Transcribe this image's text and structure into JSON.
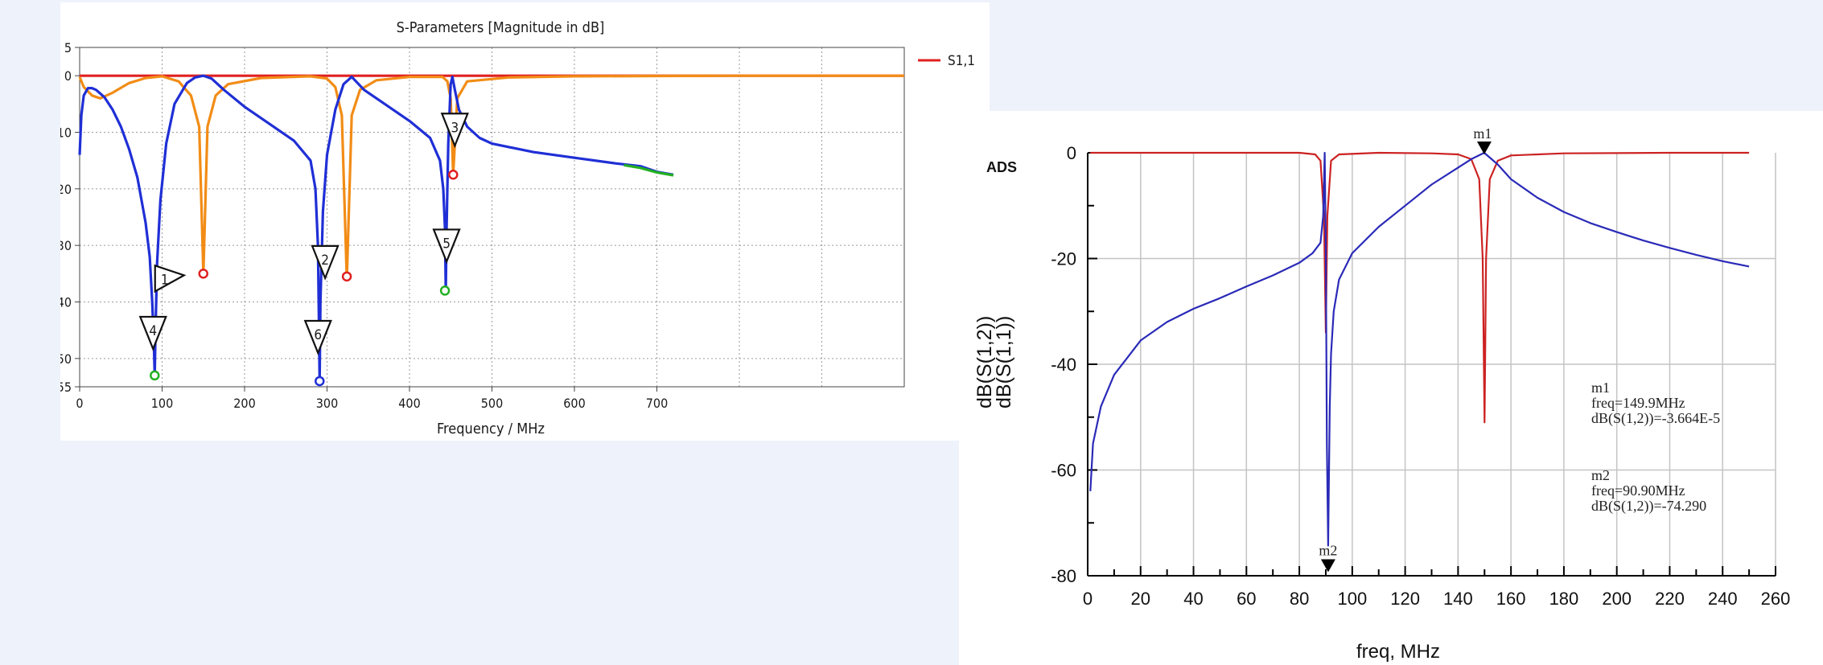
{
  "chart_data": [
    {
      "type": "line",
      "title": "S-Parameters [Magnitude in dB]",
      "xlabel": "Frequency / MHz",
      "ylabel": "",
      "xlim": [
        0,
        1000
      ],
      "ylim": [
        -55,
        5
      ],
      "x_ticks": [
        "0",
        "100",
        "200",
        "300",
        "400",
        "500",
        "600",
        "700"
      ],
      "y_ticks": [
        "5",
        "0",
        "-10",
        "-20",
        "-30",
        "-40",
        "-50",
        "-55"
      ],
      "y_tick_values": [
        5,
        0,
        -10,
        -20,
        -30,
        -40,
        -50,
        -55
      ],
      "grid": true,
      "legend": [
        {
          "name": "S1,1",
          "color": "#e02020"
        }
      ],
      "series": [
        {
          "name": "S1,1",
          "color": "#e02020",
          "x": [
            0,
            50,
            100,
            150,
            200,
            300,
            400,
            500,
            600,
            700,
            800,
            900,
            1000
          ],
          "y": [
            0,
            0,
            0,
            0,
            0,
            0,
            0,
            0,
            0,
            0,
            0,
            0,
            0
          ]
        },
        {
          "name": "",
          "color": "#f28c16",
          "x": [
            0,
            5,
            15,
            25,
            40,
            60,
            80,
            100,
            120,
            135,
            145,
            150,
            155,
            165,
            180,
            220,
            280,
            300,
            310,
            318,
            324,
            330,
            340,
            360,
            400,
            440,
            446,
            450,
            453,
            458,
            470,
            520,
            600,
            700,
            800,
            900,
            1000
          ],
          "y": [
            -0.2,
            -2,
            -3.5,
            -4,
            -3,
            -1.3,
            -0.4,
            -0.1,
            -1,
            -3.5,
            -9,
            -35,
            -9,
            -3.5,
            -1.5,
            -0.4,
            -0.1,
            -0.5,
            -2,
            -7,
            -36,
            -7,
            -2.5,
            -0.8,
            -0.2,
            -0.2,
            -1,
            -4,
            -17.5,
            -4,
            -1,
            -0.3,
            -0.1,
            -0.05,
            0,
            0,
            0
          ]
        },
        {
          "name": "",
          "color": "#1f2fd6",
          "x": [
            0,
            2,
            5,
            10,
            15,
            20,
            30,
            40,
            50,
            60,
            70,
            80,
            85,
            88,
            90,
            91,
            92,
            94,
            98,
            105,
            115,
            130,
            140,
            150,
            160,
            175,
            200,
            230,
            260,
            280,
            286,
            289,
            290,
            291,
            292,
            295,
            300,
            310,
            320,
            330,
            345,
            370,
            400,
            425,
            437,
            441,
            443,
            444,
            445,
            447,
            450,
            452,
            455,
            460,
            470,
            485,
            500,
            550,
            600,
            650,
            680,
            700,
            720
          ],
          "y": [
            -14,
            -7,
            -3.5,
            -2.2,
            -2.2,
            -2.5,
            -3.8,
            -6,
            -9,
            -13,
            -18,
            -26,
            -32,
            -40,
            -47,
            -53,
            -45,
            -33,
            -22,
            -12,
            -5,
            -1.3,
            -0.3,
            0,
            -0.5,
            -2.5,
            -5.5,
            -8.5,
            -11.5,
            -15,
            -20,
            -30,
            -42,
            -54,
            -40,
            -24,
            -14,
            -6,
            -1.5,
            -0.2,
            -2.5,
            -5,
            -8,
            -11,
            -15,
            -20,
            -27,
            -38,
            -27,
            -12,
            -1.5,
            -0.2,
            -2.5,
            -6,
            -9,
            -11,
            -12,
            -13.5,
            -14.5,
            -15.5,
            -16,
            -17,
            -17.5
          ]
        },
        {
          "name": "",
          "color": "#22b022",
          "x": [
            660,
            680,
            700,
            720
          ],
          "y": [
            -15.8,
            -16.3,
            -17.1,
            -17.6
          ]
        }
      ],
      "markers": [
        {
          "label": "1",
          "x": 150,
          "y": -35,
          "color": "#e02020"
        },
        {
          "label": "2",
          "x": 324,
          "y": -35.5,
          "color": "#e02020"
        },
        {
          "label": "3",
          "x": 453,
          "y": -17.5,
          "color": "#e02020"
        },
        {
          "label": "4",
          "x": 91,
          "y": -53,
          "color": "#22b022"
        },
        {
          "label": "5",
          "x": 443,
          "y": -38,
          "color": "#22b022"
        },
        {
          "label": "6",
          "x": 291,
          "y": -54,
          "color": "#1f2fd6"
        }
      ]
    },
    {
      "type": "line",
      "title": "",
      "xlabel": "freq, MHz",
      "ylabel": "",
      "ylabels": [
        {
          "text": "dB(S(1,2))",
          "color": "#2030c0"
        },
        {
          "text": "dB(S(1,1))",
          "color": "#d02020"
        }
      ],
      "xlim": [
        0,
        260
      ],
      "ylim": [
        -80,
        0
      ],
      "x_ticks": [
        "0",
        "20",
        "40",
        "60",
        "80",
        "100",
        "120",
        "140",
        "160",
        "180",
        "200",
        "220",
        "240",
        "260"
      ],
      "y_ticks": [
        "0",
        "-20",
        "-40",
        "-60",
        "-80"
      ],
      "grid": true,
      "watermark": "ADS",
      "series": [
        {
          "name": "dB(S(1,1))",
          "color": "#cc2222",
          "x": [
            1,
            20,
            40,
            60,
            80,
            86,
            88,
            89.3,
            90,
            90.6,
            92,
            95,
            110,
            130,
            140,
            145,
            148,
            149.3,
            150,
            150.6,
            152,
            155,
            160,
            180,
            220,
            250
          ],
          "y": [
            0,
            0,
            0,
            0,
            0,
            -0.3,
            -1.5,
            -12,
            -34,
            -12,
            -1.5,
            -0.3,
            0,
            -0.1,
            -0.3,
            -1.2,
            -5,
            -20,
            -51,
            -20,
            -5,
            -1.5,
            -0.5,
            -0.1,
            0,
            0
          ]
        },
        {
          "name": "dB(S(1,2))",
          "color": "#2a2ab8",
          "x": [
            1,
            2,
            5,
            10,
            20,
            30,
            40,
            50,
            60,
            70,
            80,
            85,
            88,
            89,
            89.6,
            90,
            90.4,
            90.9,
            91.5,
            92,
            93,
            95,
            100,
            110,
            120,
            130,
            140,
            145,
            149.9,
            155,
            160,
            170,
            180,
            190,
            200,
            210,
            220,
            230,
            240,
            250
          ],
          "y": [
            -64,
            -55,
            -48,
            -42,
            -35.5,
            -32,
            -29.5,
            -27.5,
            -25.3,
            -23.2,
            -20.8,
            -19,
            -17,
            -12,
            0,
            -18,
            -55,
            -74.3,
            -48,
            -38,
            -30,
            -24,
            -19,
            -14,
            -10,
            -6,
            -2.8,
            -1.2,
            0,
            -2.2,
            -5,
            -8.5,
            -11.2,
            -13.3,
            -15,
            -16.6,
            -18,
            -19.3,
            -20.5,
            -21.5
          ]
        }
      ],
      "markers": [
        {
          "name": "m1",
          "x": 149.9,
          "y": 0,
          "freq": "freq=149.9MHz",
          "value": "dB(S(1,2))=-3.664E-5"
        },
        {
          "name": "m2",
          "x": 90.9,
          "y": -74.29,
          "freq": "freq=90.90MHz",
          "value": "dB(S(1,2))=-74.290"
        }
      ]
    }
  ]
}
